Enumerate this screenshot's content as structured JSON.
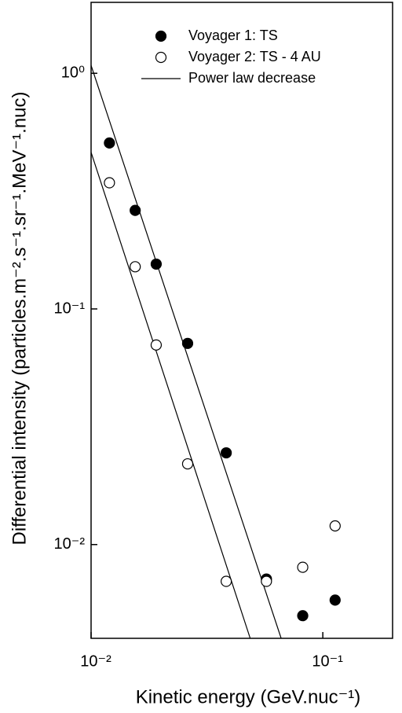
{
  "chart_data": {
    "type": "scatter",
    "xlabel": "Kinetic energy (GeV.nuc⁻¹)",
    "ylabel": "Differential intensity (particles.m⁻².s⁻¹.sr⁻¹.MeV⁻¹.nuc)",
    "log_x": true,
    "log_y": true,
    "xlim": [
      0.01,
      0.2
    ],
    "ylim": [
      0.004,
      2
    ],
    "xticks": [
      {
        "value": 0.01,
        "label": "10⁻²"
      },
      {
        "value": 0.1,
        "label": "10⁻¹"
      }
    ],
    "yticks": [
      {
        "value": 0.01,
        "label": "10⁻²"
      },
      {
        "value": 0.1,
        "label": "10⁻¹"
      },
      {
        "value": 1,
        "label": "10⁰"
      }
    ],
    "series": [
      {
        "name": "Voyager 1: TS",
        "color": "#000000",
        "marker": "filled",
        "x": [
          0.012,
          0.0155,
          0.0191,
          0.0261,
          0.0383,
          0.0571,
          0.0819,
          0.113
        ],
        "values": [
          0.506,
          0.262,
          0.155,
          0.0714,
          0.0245,
          0.00714,
          0.00499,
          0.00581
        ]
      },
      {
        "name": "Voyager 2: TS - 4 AU",
        "color": "#000000",
        "marker": "open",
        "x": [
          0.012,
          0.0155,
          0.0191,
          0.0261,
          0.0383,
          0.0571,
          0.0819,
          0.113
        ],
        "values": [
          0.343,
          0.151,
          0.0703,
          0.022,
          0.00698,
          0.00698,
          0.00801,
          0.012
        ]
      }
    ],
    "fit_lines": {
      "name": "Power law decrease",
      "color": "#000000",
      "lines": [
        {
          "x": [
            0.01,
            0.0661
          ],
          "values": [
            1.08,
            0.004
          ]
        },
        {
          "x": [
            0.01,
            0.0486
          ],
          "values": [
            0.462,
            0.004
          ]
        }
      ]
    }
  }
}
